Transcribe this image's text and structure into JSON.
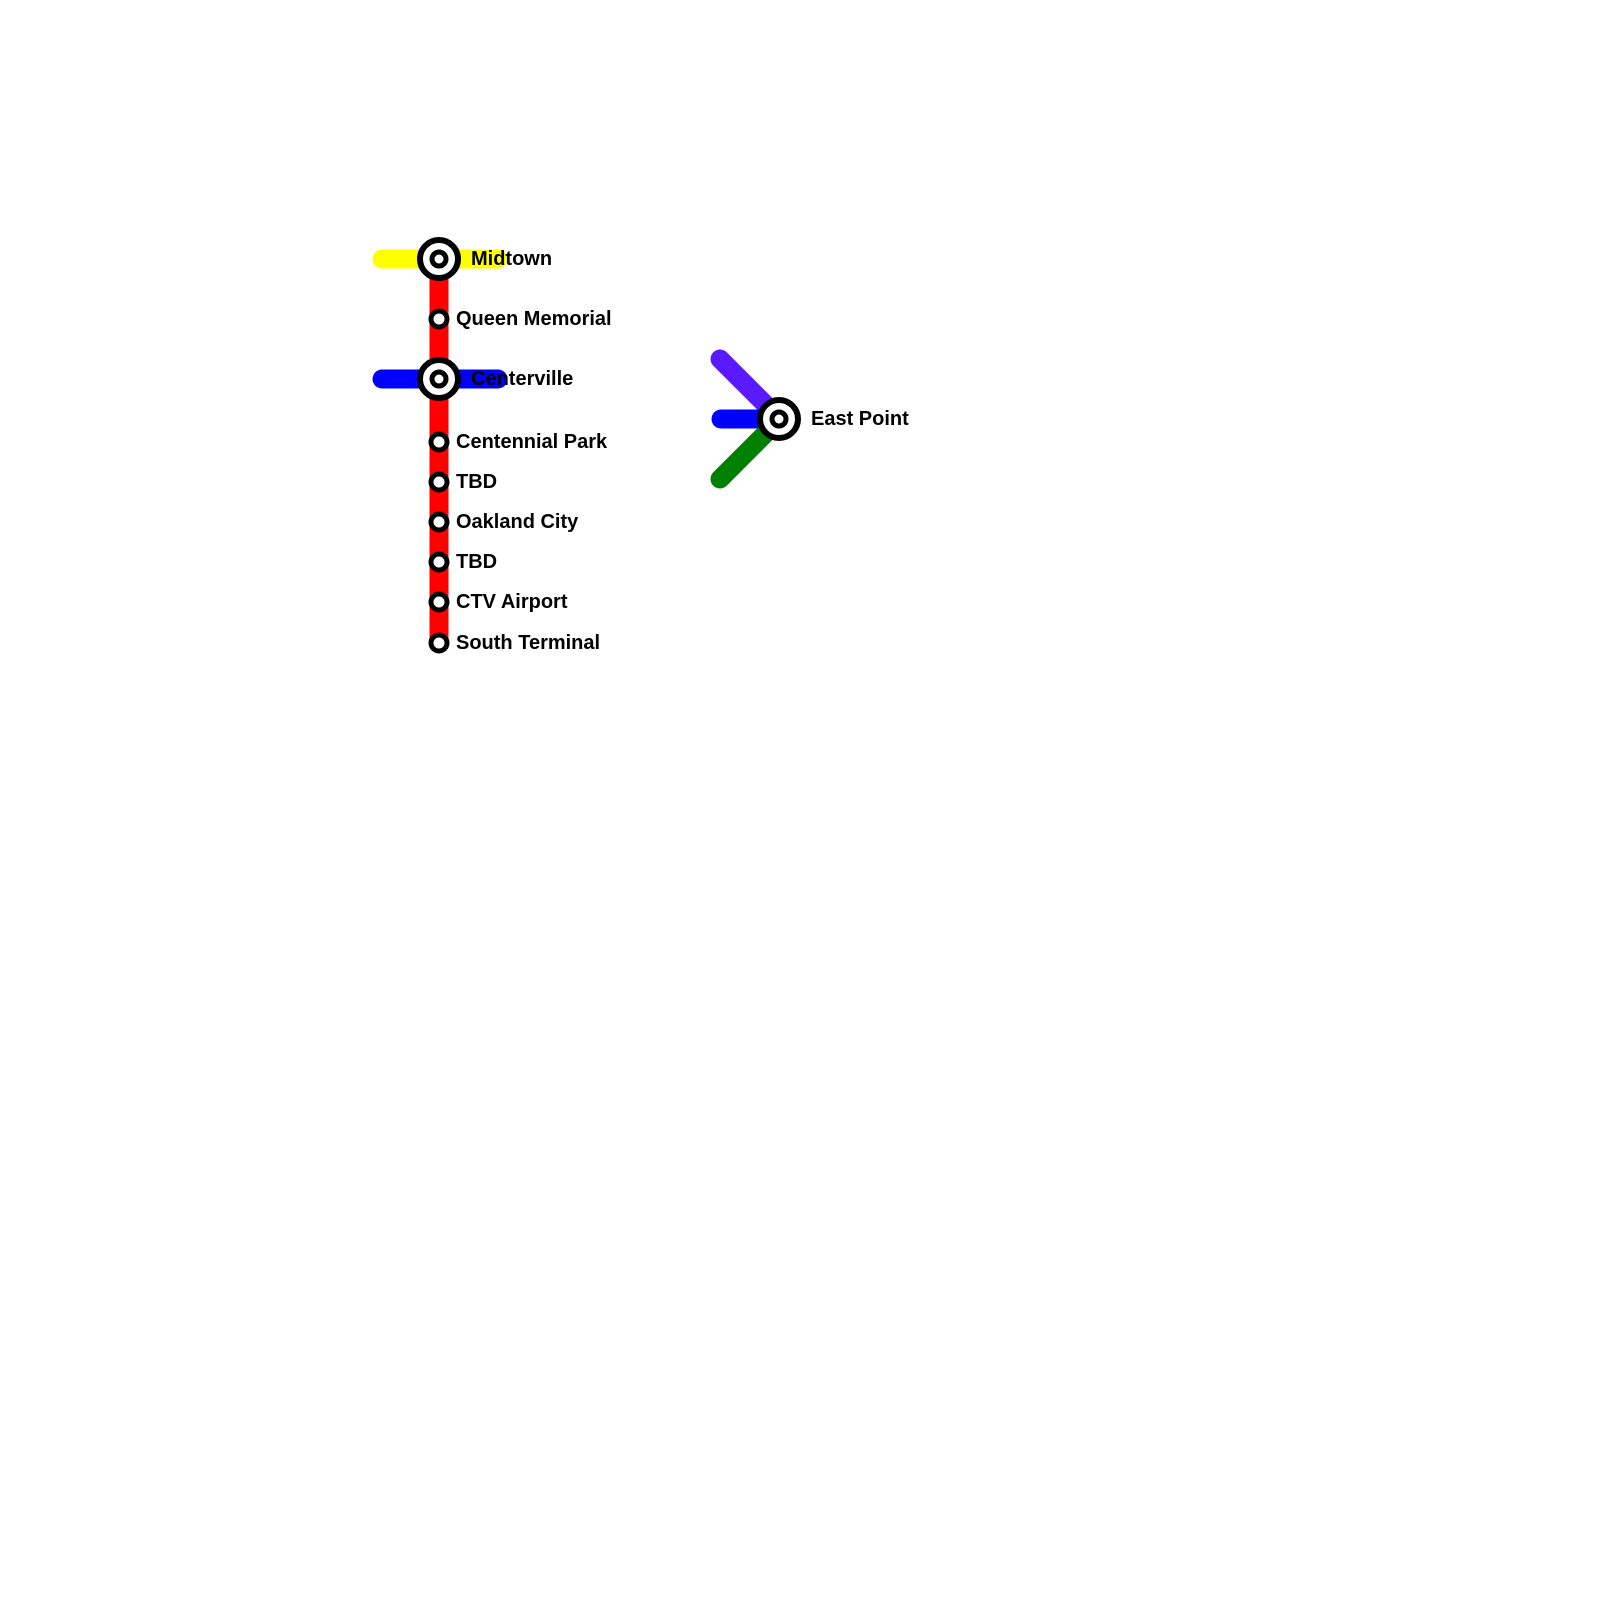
{
  "lines": {
    "red": {
      "color": "#ff0000"
    },
    "yellow": {
      "color": "#ffff00"
    },
    "blue": {
      "color": "#0000ff"
    },
    "purple": {
      "color": "#5a1aff"
    },
    "green": {
      "color": "#008000"
    }
  },
  "stations": [
    {
      "name": "Midtown",
      "interchange": true
    },
    {
      "name": "Queen Memorial",
      "interchange": false
    },
    {
      "name": "Centerville",
      "interchange": true
    },
    {
      "name": "Centennial Park",
      "interchange": false
    },
    {
      "name": "TBD",
      "interchange": false
    },
    {
      "name": "Oakland City",
      "interchange": false
    },
    {
      "name": "TBD",
      "interchange": false
    },
    {
      "name": "CTV Airport",
      "interchange": false
    },
    {
      "name": "South Terminal",
      "interchange": false
    },
    {
      "name": "East Point",
      "interchange": true
    }
  ]
}
